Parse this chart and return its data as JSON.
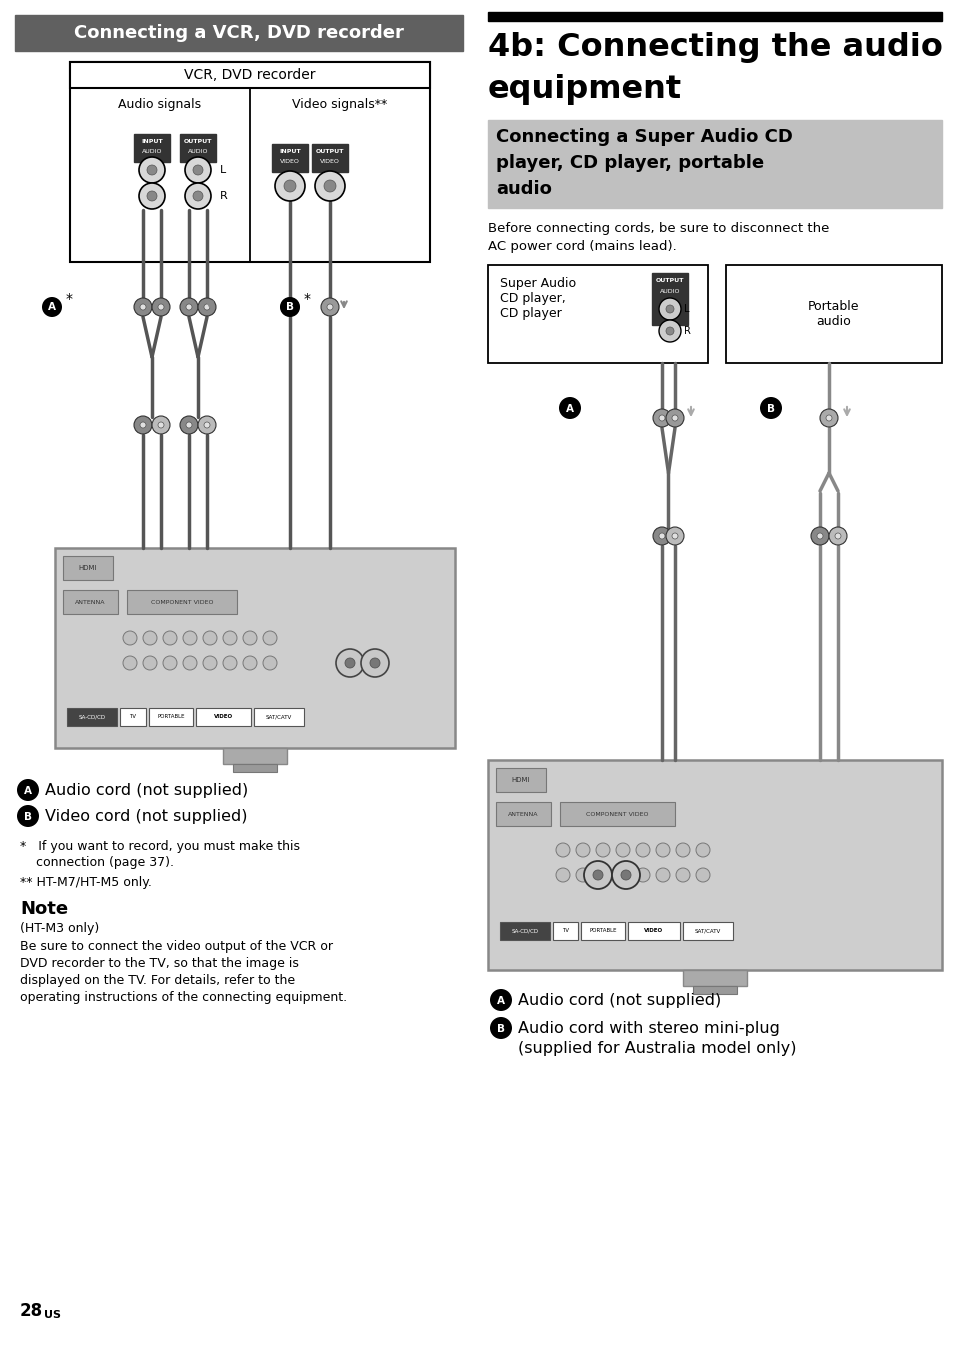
{
  "bg": "#ffffff",
  "lh_text": "Connecting a VCR, DVD recorder",
  "lh_bg": "#606060",
  "lh_fg": "#ffffff",
  "vcr_label": "VCR, DVD recorder",
  "audio_label": "Audio signals",
  "video_label": "Video signals**",
  "input_audio": "INPUT\nAUDIO",
  "output_audio": "OUTPUT\nAUDIO",
  "input_video": "INPUT\nVIDEO",
  "output_video": "OUTPUT\nVIDEO",
  "leg_A_left": "Audio cord (not supplied)",
  "leg_B_left": "Video cord (not supplied)",
  "fn1a": "*   If you want to record, you must make this",
  "fn1b": "    connection (page 37).",
  "fn2": "** HT-M7/HT-M5 only.",
  "note_title": "Note",
  "note_ht": "(HT-M3 only)",
  "note_body1": "Be sure to connect the video output of the VCR or",
  "note_body2": "DVD recorder to the TV, so that the image is",
  "note_body3": "displayed on the TV. For details, refer to the",
  "note_body4": "operating instructions of the connecting equipment.",
  "page28": "28",
  "pageUS": "US",
  "rh_bar": "black",
  "rh_t1": "4b: Connecting the audio",
  "rh_t2": "equipment",
  "rsh_bg": "#c0c0c0",
  "rsh_t1": "Connecting a Super Audio CD",
  "rsh_t2": "player, CD player, portable",
  "rsh_t3": "audio",
  "intro1": "Before connecting cords, be sure to disconnect the",
  "intro2": "AC power cord (mains lead).",
  "sacd_t": "Super Audio\nCD player,\nCD player",
  "out_label": "OUTPUT\nAUDIO\nOUT",
  "portable_t": "Portable\naudio",
  "leg_A_right": "Audio cord (not supplied)",
  "leg_B_right1": "Audio cord with stereo mini-plug",
  "leg_B_right2": "(supplied for Australia model only)"
}
